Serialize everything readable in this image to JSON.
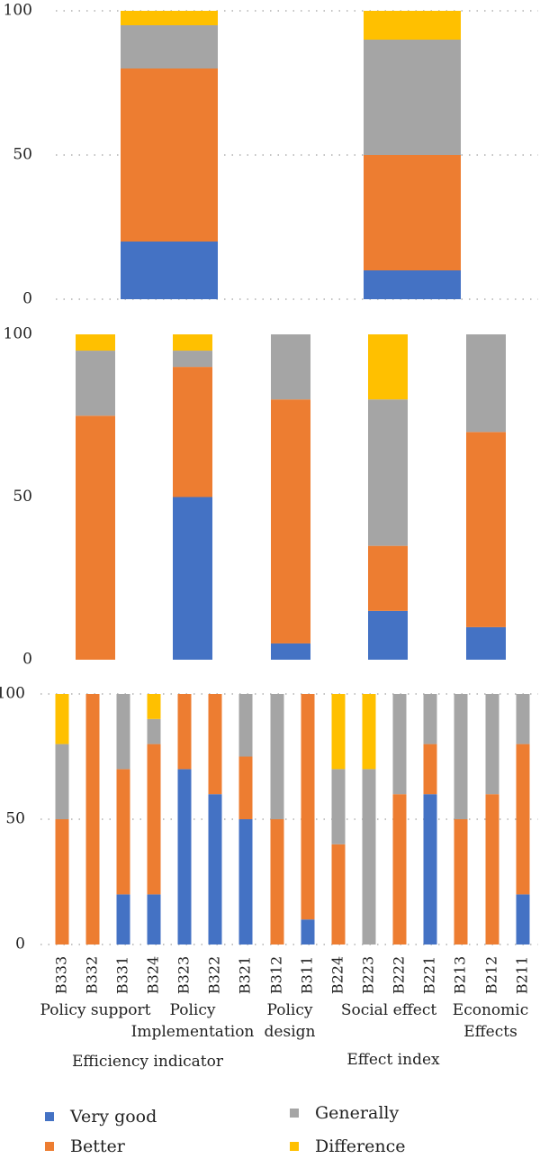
{
  "colors": {
    "very_good": "#4472C4",
    "better": "#ED7D31",
    "generally": "#A5A5A5",
    "difference": "#FFC000"
  },
  "series_names": [
    "Very good",
    "Better",
    "Generally",
    "Difference"
  ],
  "chart_data": [
    {
      "type": "bar",
      "stacked": true,
      "categories": [
        "Efficiency indicator",
        "Effect index"
      ],
      "ylim": [
        0,
        100
      ],
      "yticks": [
        0,
        50,
        100
      ],
      "grid": "dotted",
      "series": [
        {
          "name": "Very good",
          "values": [
            20,
            10
          ]
        },
        {
          "name": "Better",
          "values": [
            60,
            40
          ]
        },
        {
          "name": "Generally",
          "values": [
            15,
            40
          ]
        },
        {
          "name": "Difference",
          "values": [
            5,
            10
          ]
        }
      ]
    },
    {
      "type": "bar",
      "stacked": true,
      "categories": [
        "Policy support",
        "Policy Implementation",
        "Policy design",
        "Social effect",
        "Economic Effects"
      ],
      "ylim": [
        0,
        100
      ],
      "yticks": [
        0,
        50,
        100
      ],
      "series": [
        {
          "name": "Very good",
          "values": [
            0,
            50,
            5,
            15,
            10
          ]
        },
        {
          "name": "Better",
          "values": [
            75,
            40,
            75,
            20,
            60
          ]
        },
        {
          "name": "Generally",
          "values": [
            20,
            5,
            20,
            45,
            30
          ]
        },
        {
          "name": "Difference",
          "values": [
            5,
            5,
            0,
            20,
            0
          ]
        }
      ]
    },
    {
      "type": "bar",
      "stacked": true,
      "categories": [
        "B333",
        "B332",
        "B331",
        "B324",
        "B323",
        "B322",
        "B321",
        "B312",
        "B311",
        "B224",
        "B223",
        "B222",
        "B221",
        "B213",
        "B212",
        "B211"
      ],
      "ylim": [
        0,
        100
      ],
      "yticks": [
        0,
        50,
        100
      ],
      "grid": "dotted",
      "series": [
        {
          "name": "Very good",
          "values": [
            0,
            0,
            20,
            20,
            70,
            60,
            50,
            0,
            10,
            0,
            0,
            0,
            60,
            0,
            0,
            20
          ]
        },
        {
          "name": "Better",
          "values": [
            50,
            100,
            50,
            60,
            30,
            40,
            25,
            50,
            90,
            40,
            0,
            60,
            20,
            50,
            60,
            60
          ]
        },
        {
          "name": "Generally",
          "values": [
            30,
            0,
            30,
            10,
            0,
            0,
            25,
            50,
            0,
            30,
            70,
            40,
            20,
            50,
            40,
            20
          ]
        },
        {
          "name": "Difference",
          "values": [
            20,
            0,
            0,
            10,
            0,
            0,
            0,
            0,
            0,
            30,
            30,
            0,
            0,
            0,
            0,
            0
          ]
        }
      ]
    }
  ],
  "group_labels": [
    [
      "Policy support"
    ],
    [
      "Policy",
      "Implementation"
    ],
    [
      "Policy",
      "design"
    ],
    [
      "Social effect"
    ],
    [
      "Economic",
      "Effects"
    ]
  ],
  "top_labels": [
    "Efficiency indicator",
    "Effect index"
  ]
}
